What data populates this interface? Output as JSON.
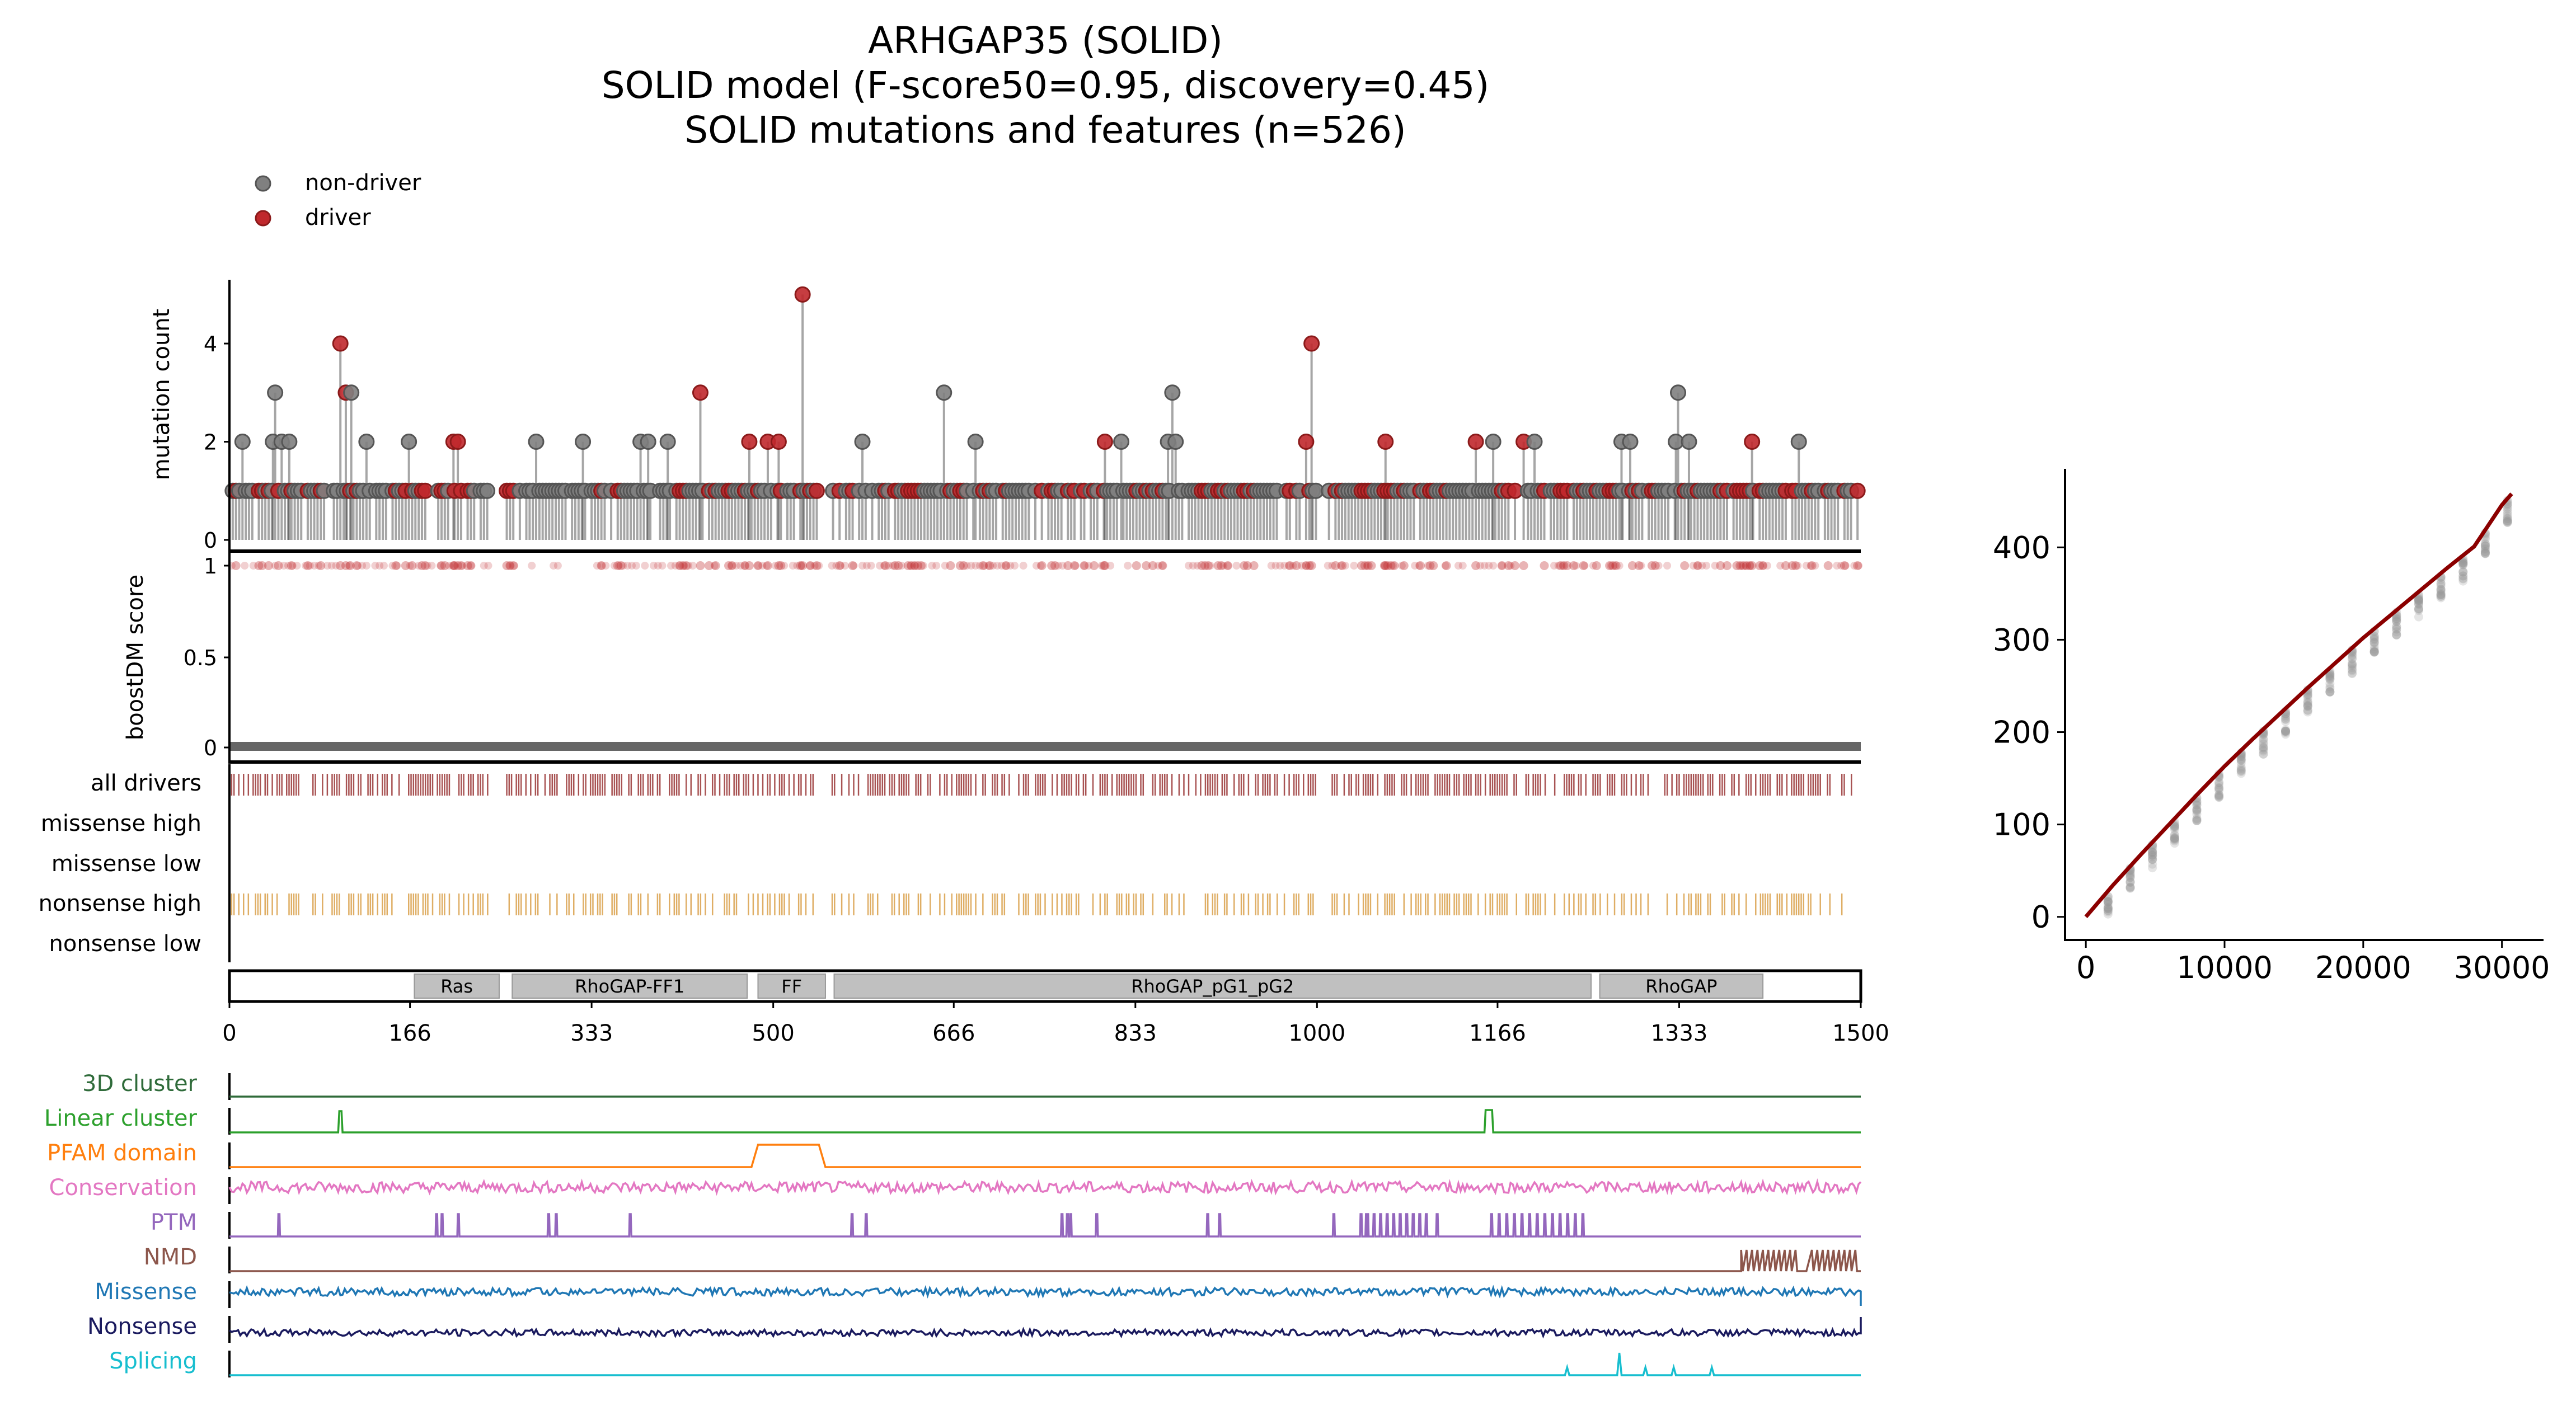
{
  "title": {
    "line1": "ARHGAP35 (SOLID)",
    "line2": "SOLID model (F-score50=0.95, discovery=0.45)",
    "line3": "SOLID mutations and features (n=526)"
  },
  "legend": [
    {
      "label": "non-driver",
      "color": "#808080"
    },
    {
      "label": "driver",
      "color": "#c0282c"
    }
  ],
  "colors": {
    "driver": "#c0282c",
    "driver_dark": "#8b1a1a",
    "non_driver": "#808080",
    "nonsense_high": "#d9a04a",
    "domain_fill": "#c0c0c0",
    "downsampling_line": "#8b0000"
  },
  "chart_data": [
    {
      "type": "lollipop",
      "name": "mutation-count",
      "ylabel": "mutation count",
      "xlim": [
        0,
        1500
      ],
      "ylim": [
        0,
        5.3
      ],
      "yticks": [
        "0",
        "2",
        "4"
      ],
      "notable_positions": [
        {
          "pos": 102,
          "count": 4,
          "driver": true
        },
        {
          "pos": 107,
          "count": 3,
          "driver": true
        },
        {
          "pos": 112,
          "count": 3,
          "driver": false
        },
        {
          "pos": 42,
          "count": 3,
          "driver": false
        },
        {
          "pos": 433,
          "count": 3,
          "driver": true
        },
        {
          "pos": 527,
          "count": 5,
          "driver": true
        },
        {
          "pos": 657,
          "count": 3,
          "driver": false
        },
        {
          "pos": 867,
          "count": 3,
          "driver": false
        },
        {
          "pos": 995,
          "count": 4,
          "driver": true
        },
        {
          "pos": 1332,
          "count": 3,
          "driver": false
        },
        {
          "pos": 12,
          "count": 2,
          "driver": false
        },
        {
          "pos": 40,
          "count": 2,
          "driver": false
        },
        {
          "pos": 48,
          "count": 2,
          "driver": false
        },
        {
          "pos": 55,
          "count": 2,
          "driver": false
        },
        {
          "pos": 126,
          "count": 2,
          "driver": false
        },
        {
          "pos": 165,
          "count": 2,
          "driver": false
        },
        {
          "pos": 206,
          "count": 2,
          "driver": true
        },
        {
          "pos": 210,
          "count": 2,
          "driver": true
        },
        {
          "pos": 282,
          "count": 2,
          "driver": false
        },
        {
          "pos": 325,
          "count": 2,
          "driver": false
        },
        {
          "pos": 378,
          "count": 2,
          "driver": false
        },
        {
          "pos": 385,
          "count": 2,
          "driver": false
        },
        {
          "pos": 403,
          "count": 2,
          "driver": false
        },
        {
          "pos": 478,
          "count": 2,
          "driver": true
        },
        {
          "pos": 495,
          "count": 2,
          "driver": true
        },
        {
          "pos": 505,
          "count": 2,
          "driver": true
        },
        {
          "pos": 582,
          "count": 2,
          "driver": false
        },
        {
          "pos": 686,
          "count": 2,
          "driver": false
        },
        {
          "pos": 805,
          "count": 2,
          "driver": true
        },
        {
          "pos": 820,
          "count": 2,
          "driver": false
        },
        {
          "pos": 863,
          "count": 2,
          "driver": false
        },
        {
          "pos": 870,
          "count": 2,
          "driver": false
        },
        {
          "pos": 990,
          "count": 2,
          "driver": true
        },
        {
          "pos": 1063,
          "count": 2,
          "driver": true
        },
        {
          "pos": 1146,
          "count": 2,
          "driver": true
        },
        {
          "pos": 1162,
          "count": 2,
          "driver": false
        },
        {
          "pos": 1190,
          "count": 2,
          "driver": true
        },
        {
          "pos": 1200,
          "count": 2,
          "driver": false
        },
        {
          "pos": 1280,
          "count": 2,
          "driver": false
        },
        {
          "pos": 1288,
          "count": 2,
          "driver": false
        },
        {
          "pos": 1330,
          "count": 2,
          "driver": false
        },
        {
          "pos": 1342,
          "count": 2,
          "driver": false
        },
        {
          "pos": 1400,
          "count": 2,
          "driver": true
        },
        {
          "pos": 1443,
          "count": 2,
          "driver": false
        }
      ]
    },
    {
      "type": "scatter",
      "name": "boostdm-score",
      "ylabel": "boostDM score",
      "ylim": [
        0,
        1
      ],
      "yticks": [
        "0",
        "0.5",
        "1"
      ]
    },
    {
      "type": "track",
      "name": "driver-tracks",
      "rows": [
        "all drivers",
        "missense high",
        "missense low",
        "nonsense high",
        "nonsense low"
      ]
    },
    {
      "type": "domains",
      "name": "protein-domains",
      "xlim": [
        0,
        1500
      ],
      "xticks": [
        "0",
        "166",
        "333",
        "500",
        "666",
        "833",
        "1000",
        "1166",
        "1333",
        "1500"
      ],
      "domains": [
        {
          "label": "Ras",
          "start": 170,
          "end": 248
        },
        {
          "label": "RhoGAP-FF1",
          "start": 260,
          "end": 476
        },
        {
          "label": "FF",
          "start": 486,
          "end": 548
        },
        {
          "label": "RhoGAP_pG1_pG2",
          "start": 556,
          "end": 1252
        },
        {
          "label": "RhoGAP",
          "start": 1260,
          "end": 1410
        }
      ]
    },
    {
      "type": "line",
      "name": "feature-tracks",
      "features": [
        {
          "label": "3D cluster",
          "color": "#2f6b3a"
        },
        {
          "label": "Linear cluster",
          "color": "#2ca02c"
        },
        {
          "label": "PFAM domain",
          "color": "#ff7f0e"
        },
        {
          "label": "Conservation",
          "color": "#e377c2"
        },
        {
          "label": "PTM",
          "color": "#9467bd"
        },
        {
          "label": "NMD",
          "color": "#8c564b"
        },
        {
          "label": "Missense",
          "color": "#1f77b4"
        },
        {
          "label": "Nonsense",
          "color": "#1a1a5e"
        },
        {
          "label": "Splicing",
          "color": "#17becf"
        }
      ],
      "linear_cluster_peaks": [
        102,
        1156,
        1160
      ],
      "pfam_domain_range": [
        486,
        548
      ],
      "ptm_positions": [
        45,
        190,
        195,
        210,
        293,
        300,
        368,
        572,
        585,
        765,
        770,
        773,
        797,
        899,
        910,
        1015,
        1045,
        1110
      ],
      "nmd_start": 1390,
      "splicing_peaks": [
        1230,
        1278,
        1302,
        1328,
        1363
      ]
    },
    {
      "type": "line",
      "name": "mutation-downsampling",
      "title_line1": "Mutation Downsampling",
      "title_line2": "ARHGAP35 (SOLID)",
      "xlabel": "no. samples",
      "ylabel": "no. unique mutations",
      "xlim": [
        -1500,
        33000
      ],
      "ylim": [
        -25,
        485
      ],
      "xticks": [
        0,
        10000,
        20000,
        30000
      ],
      "yticks": [
        0,
        100,
        200,
        300,
        400
      ],
      "fit_x": [
        0,
        2000,
        4000,
        6000,
        8000,
        10000,
        12000,
        14000,
        16000,
        18000,
        20000,
        22000,
        24000,
        26000,
        28000,
        30000,
        30700
      ],
      "fit_y": [
        0,
        35,
        68,
        100,
        132,
        163,
        192,
        220,
        248,
        275,
        302,
        327,
        352,
        377,
        401,
        446,
        458
      ]
    }
  ]
}
